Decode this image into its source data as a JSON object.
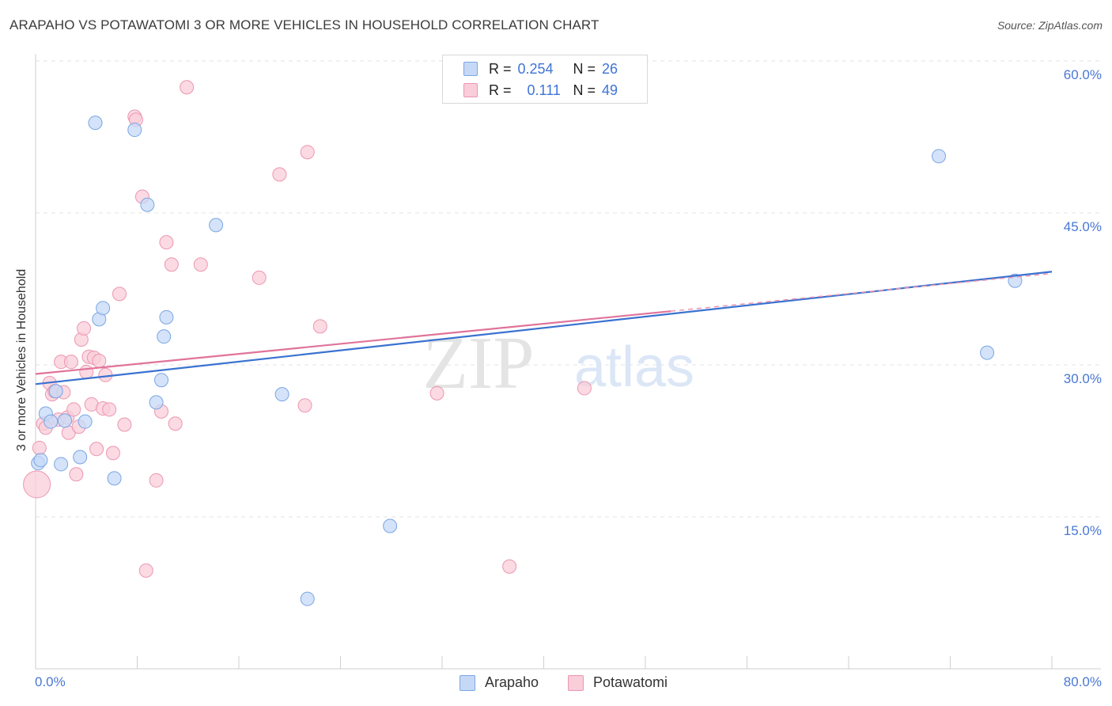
{
  "title": "ARAPAHO VS POTAWATOMI 3 OR MORE VEHICLES IN HOUSEHOLD CORRELATION CHART",
  "source": "Source: ZipAtlas.com",
  "watermark": {
    "zip": "ZIP",
    "atlas": "atlas"
  },
  "legend": {
    "rows": [
      {
        "r_label": "R =",
        "r_value": "0.254",
        "n_label": "N =",
        "n_value": "26"
      },
      {
        "r_label": "R =",
        "r_value": "0.111",
        "n_label": "N =",
        "n_value": "49"
      }
    ],
    "bottom": [
      "Arapaho",
      "Potawatomi"
    ]
  },
  "colors": {
    "arapaho_fill": "#c5d9f7",
    "arapaho_stroke": "#7aa5e3",
    "arapaho_line": "#3a72d0",
    "potawatomi_fill": "#f9cdd9",
    "potawatomi_stroke": "#ec96b0",
    "potawatomi_line": "#e0739a",
    "tick_text": "#4a78d4"
  },
  "chart_data": {
    "type": "scatter",
    "title": "ARAPAHO VS POTAWATOMI 3 OR MORE VEHICLES IN HOUSEHOLD CORRELATION CHART",
    "xlabel": "",
    "ylabel": "3 or more Vehicles in Household",
    "xlim": [
      0,
      80
    ],
    "ylim": [
      0,
      60
    ],
    "y_ticks": [
      15,
      30,
      45,
      60
    ],
    "y_tick_labels": [
      "15.0%",
      "30.0%",
      "45.0%",
      "60.0%"
    ],
    "x_tick_labels": [
      "0.0%",
      "80.0%"
    ],
    "series": [
      {
        "name": "Arapaho",
        "r": 0.254,
        "n": 26,
        "trend": {
          "x": [
            0,
            80
          ],
          "y": [
            28.1,
            39.2
          ]
        },
        "points": [
          [
            0.2,
            20.3
          ],
          [
            0.4,
            20.6
          ],
          [
            0.8,
            25.2
          ],
          [
            1.2,
            24.4
          ],
          [
            1.6,
            27.4
          ],
          [
            2.0,
            20.2
          ],
          [
            2.3,
            24.5
          ],
          [
            3.5,
            20.9
          ],
          [
            3.9,
            24.4
          ],
          [
            4.7,
            53.9
          ],
          [
            5.0,
            34.5
          ],
          [
            5.3,
            35.6
          ],
          [
            6.2,
            18.8
          ],
          [
            7.8,
            53.2
          ],
          [
            8.8,
            45.8
          ],
          [
            9.5,
            26.3
          ],
          [
            9.9,
            28.5
          ],
          [
            10.1,
            32.8
          ],
          [
            10.3,
            34.7
          ],
          [
            14.2,
            43.8
          ],
          [
            19.4,
            27.1
          ],
          [
            21.4,
            6.9
          ],
          [
            27.9,
            14.1
          ],
          [
            71.1,
            50.6
          ],
          [
            74.9,
            31.2
          ],
          [
            77.1,
            38.3
          ]
        ]
      },
      {
        "name": "Potawatomi",
        "r": 0.111,
        "n": 49,
        "trend": {
          "x": [
            0,
            50
          ],
          "y": [
            29.1,
            35.3
          ]
        },
        "points": [
          [
            0.1,
            18.2
          ],
          [
            0.3,
            21.8
          ],
          [
            0.6,
            24.2
          ],
          [
            0.8,
            23.8
          ],
          [
            1.1,
            28.2
          ],
          [
            1.3,
            27.1
          ],
          [
            1.5,
            27.4
          ],
          [
            1.8,
            24.6
          ],
          [
            2.0,
            30.3
          ],
          [
            2.2,
            27.3
          ],
          [
            2.5,
            24.8
          ],
          [
            2.6,
            23.3
          ],
          [
            2.8,
            30.3
          ],
          [
            3.0,
            25.6
          ],
          [
            3.2,
            19.2
          ],
          [
            3.4,
            23.9
          ],
          [
            3.6,
            32.5
          ],
          [
            3.8,
            33.6
          ],
          [
            4.0,
            29.3
          ],
          [
            4.2,
            30.8
          ],
          [
            4.4,
            26.1
          ],
          [
            4.6,
            30.7
          ],
          [
            4.8,
            21.7
          ],
          [
            5.0,
            30.4
          ],
          [
            5.3,
            25.7
          ],
          [
            5.5,
            29.0
          ],
          [
            5.8,
            25.6
          ],
          [
            6.1,
            21.3
          ],
          [
            6.6,
            37.0
          ],
          [
            7.0,
            24.1
          ],
          [
            7.8,
            54.5
          ],
          [
            7.9,
            54.2
          ],
          [
            8.4,
            46.6
          ],
          [
            8.7,
            9.7
          ],
          [
            9.5,
            18.6
          ],
          [
            9.9,
            25.4
          ],
          [
            10.3,
            42.1
          ],
          [
            10.7,
            39.9
          ],
          [
            11.0,
            24.2
          ],
          [
            11.9,
            57.4
          ],
          [
            13.0,
            39.9
          ],
          [
            17.6,
            38.6
          ],
          [
            19.2,
            48.8
          ],
          [
            21.2,
            26.0
          ],
          [
            21.4,
            51.0
          ],
          [
            22.4,
            33.8
          ],
          [
            31.6,
            27.2
          ],
          [
            37.3,
            10.1
          ],
          [
            43.2,
            27.7
          ]
        ]
      }
    ]
  }
}
